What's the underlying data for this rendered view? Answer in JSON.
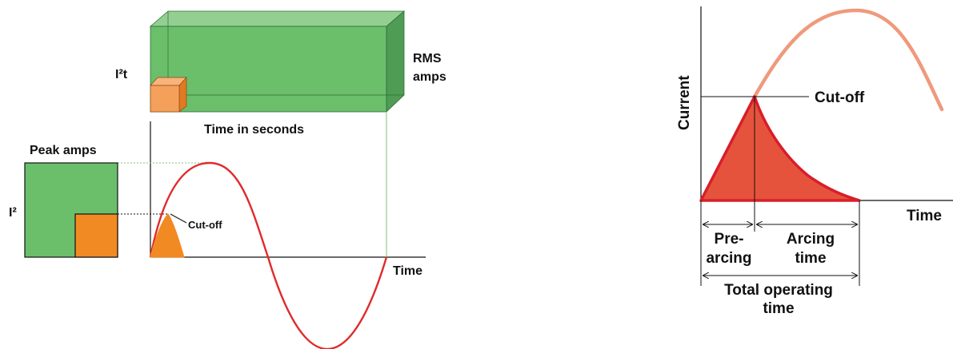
{
  "left_diagram": {
    "i2t_label": "I²t",
    "rms_label_line1": "RMS",
    "rms_label_line2": "amps",
    "time_seconds_label": "Time in seconds",
    "peak_amps_label": "Peak amps",
    "i2_label": "I²",
    "cutoff_label": "Cut-off",
    "time_axis_label": "Time"
  },
  "right_diagram": {
    "current_axis_label": "Current",
    "cutoff_label": "Cut-off",
    "time_axis_label": "Time",
    "prearcing_line1": "Pre-",
    "prearcing_line2": "arcing",
    "arcing_line1": "Arcing",
    "arcing_line2": "time",
    "total_line1": "Total operating",
    "total_line2": "time"
  },
  "colors": {
    "green": "#6bbf6b",
    "green_dark": "#4f9c55",
    "green_light": "#93cf91",
    "orange": "#f28a23",
    "orange_light": "#f5a05a",
    "red": "#e02b2b",
    "red_fill": "#e5533c",
    "salmon": "#ef9a7c"
  }
}
